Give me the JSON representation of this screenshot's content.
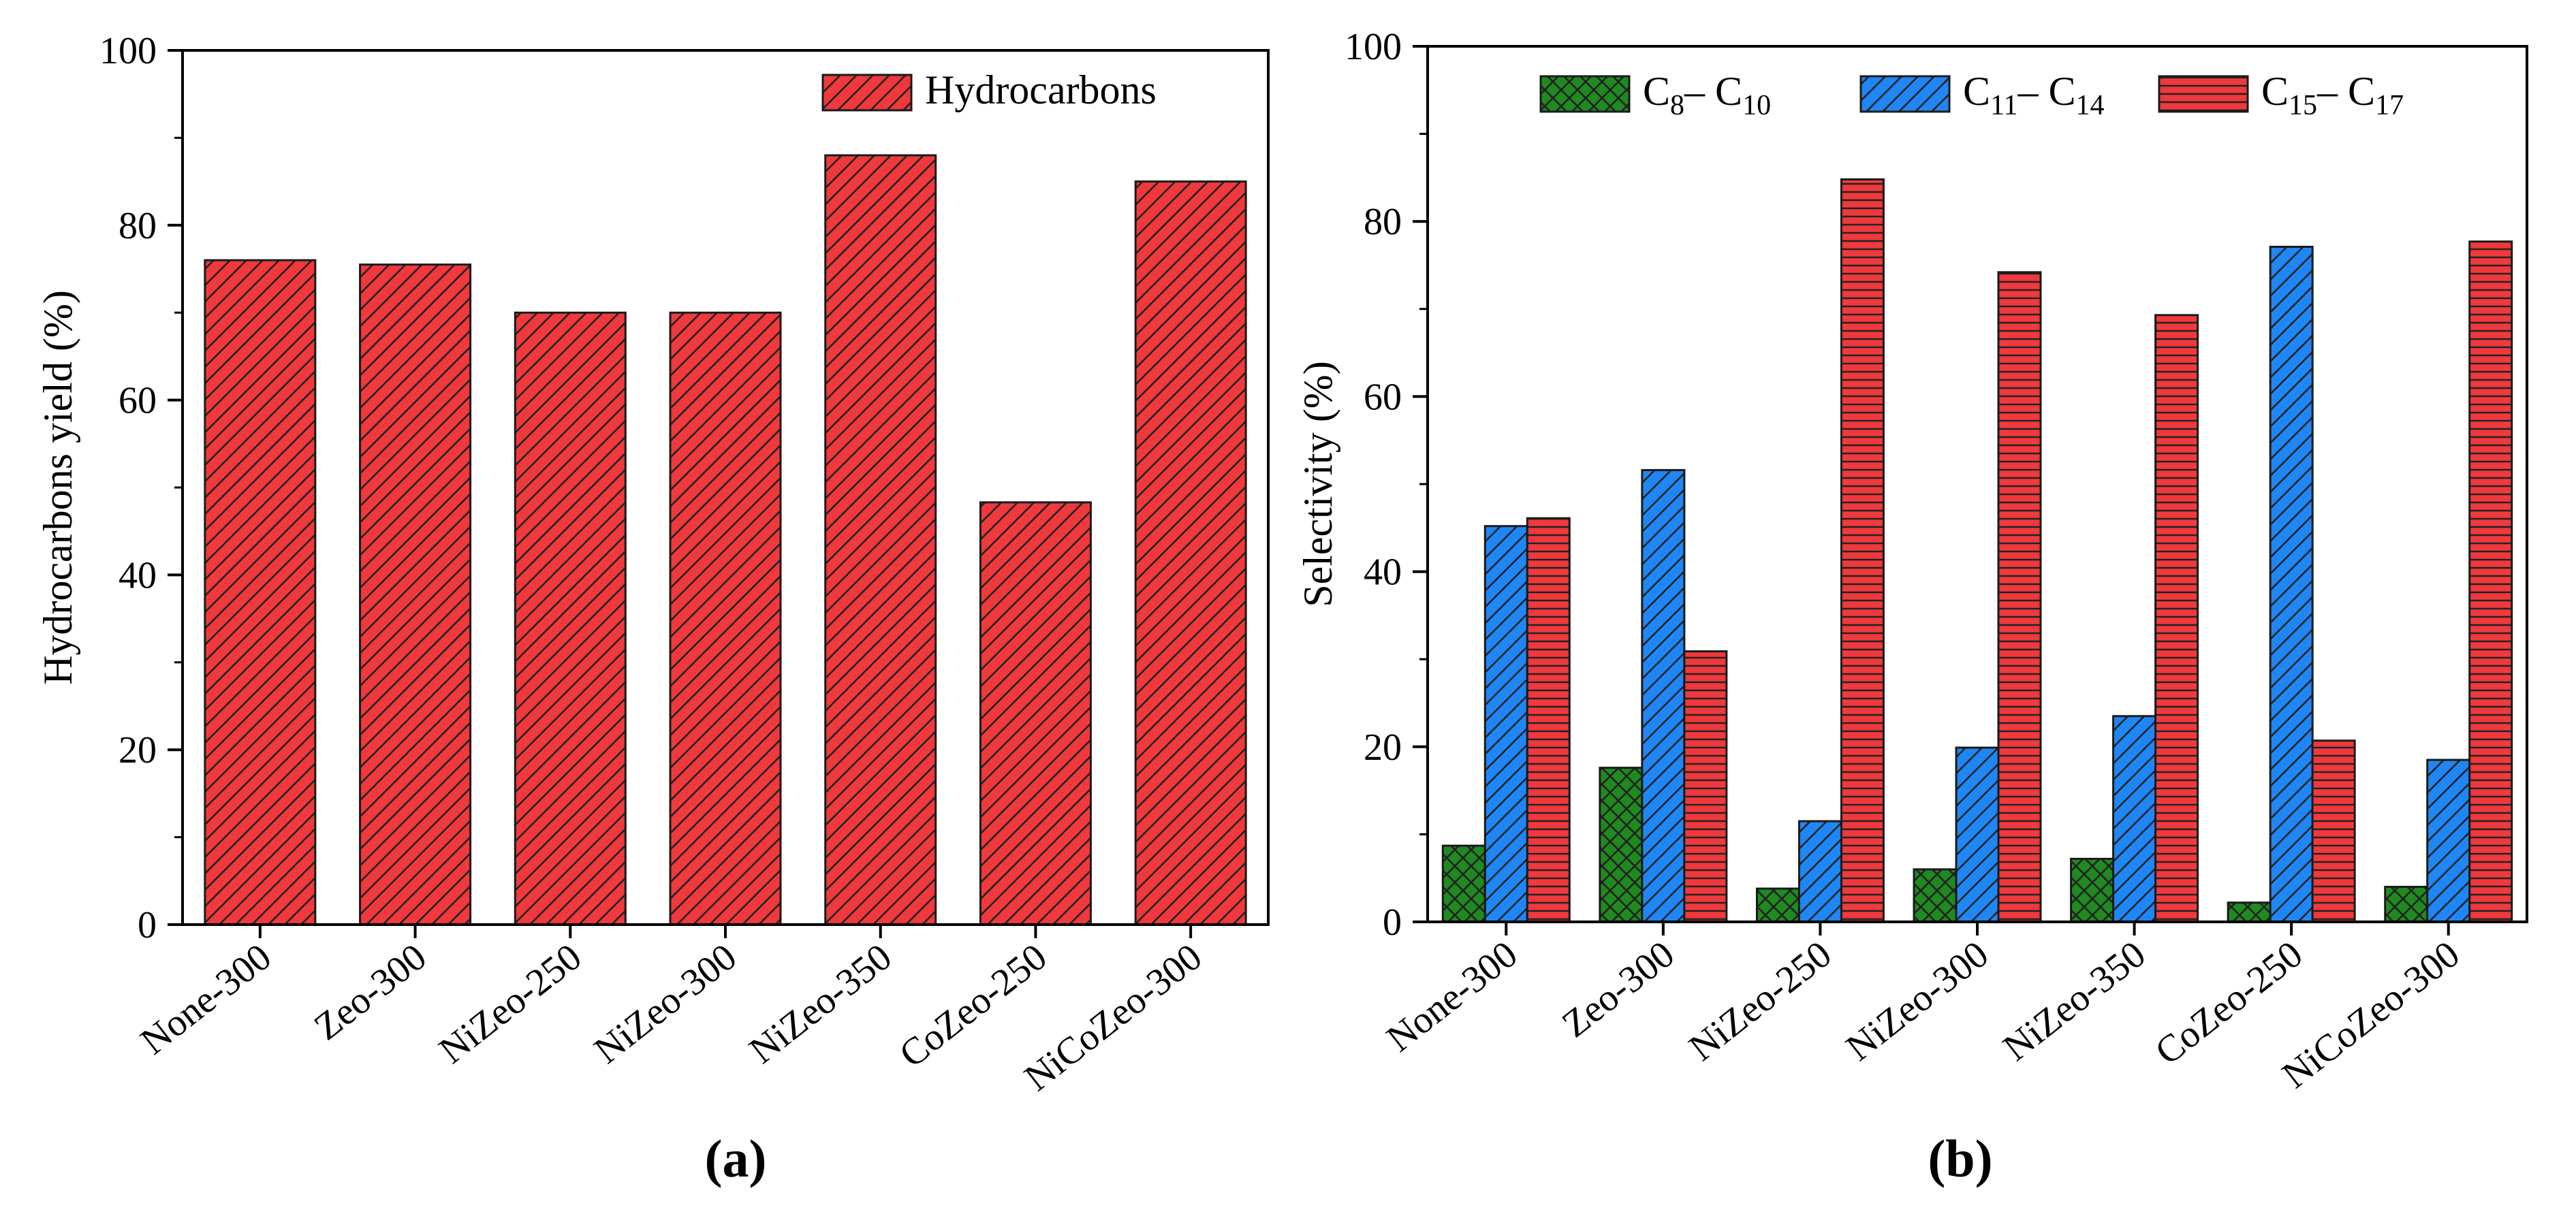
{
  "colors": {
    "red": "#f0393c",
    "blue": "#1f87f5",
    "green": "#1f8a1f",
    "edge": "#1a1a1a"
  },
  "chart_data": [
    {
      "id": "a",
      "type": "bar",
      "panel_label": "(a)",
      "title": "",
      "xlabel": "",
      "ylabel": "Hydrocarbons yield (%)",
      "ylim": [
        0,
        100
      ],
      "yticks": [
        "0",
        "20",
        "40",
        "60",
        "80",
        "100"
      ],
      "categories": [
        "None-300",
        "Zeo-300",
        "NiZeo-250",
        "NiZeo-300",
        "NiZeo-350",
        "CoZeo-250",
        "NiCoZeo-300"
      ],
      "series": [
        {
          "name": "Hydrocarbons",
          "color": "#f0393c",
          "pattern": "diag",
          "values": [
            76,
            75.5,
            70,
            70,
            88,
            48.3,
            85
          ]
        }
      ],
      "legend_position": "top-right",
      "grid": false
    },
    {
      "id": "b",
      "type": "bar",
      "panel_label": "(b)",
      "title": "",
      "xlabel": "",
      "ylabel": "Selectivity (%)",
      "ylim": [
        0,
        100
      ],
      "yticks": [
        "0",
        "20",
        "40",
        "60",
        "80",
        "100"
      ],
      "categories": [
        "None-300",
        "Zeo-300",
        "NiZeo-250",
        "NiZeo-300",
        "NiZeo-350",
        "CoZeo-250",
        "NiCoZeo-300"
      ],
      "series": [
        {
          "name": "C8– C10",
          "label_base1": "C",
          "label_sub1": "8",
          "label_mid": "– C",
          "label_sub2": "10",
          "color": "#1f8a1f",
          "pattern": "cross",
          "values": [
            8.7,
            17.6,
            3.8,
            6.0,
            7.2,
            2.2,
            4.0
          ]
        },
        {
          "name": "C11– C14",
          "label_base1": "C",
          "label_sub1": "11",
          "label_mid": "– C",
          "label_sub2": "14",
          "color": "#1f87f5",
          "pattern": "diag",
          "values": [
            45.2,
            51.6,
            11.5,
            19.9,
            23.5,
            77.1,
            18.5
          ]
        },
        {
          "name": "C15– C17",
          "label_base1": "C",
          "label_sub1": "15",
          "label_mid": "– C",
          "label_sub2": "17",
          "color": "#f0393c",
          "pattern": "horiz",
          "values": [
            46.1,
            30.9,
            84.8,
            74.2,
            69.3,
            20.7,
            77.7
          ]
        }
      ],
      "legend_position": "top",
      "grid": false
    }
  ]
}
